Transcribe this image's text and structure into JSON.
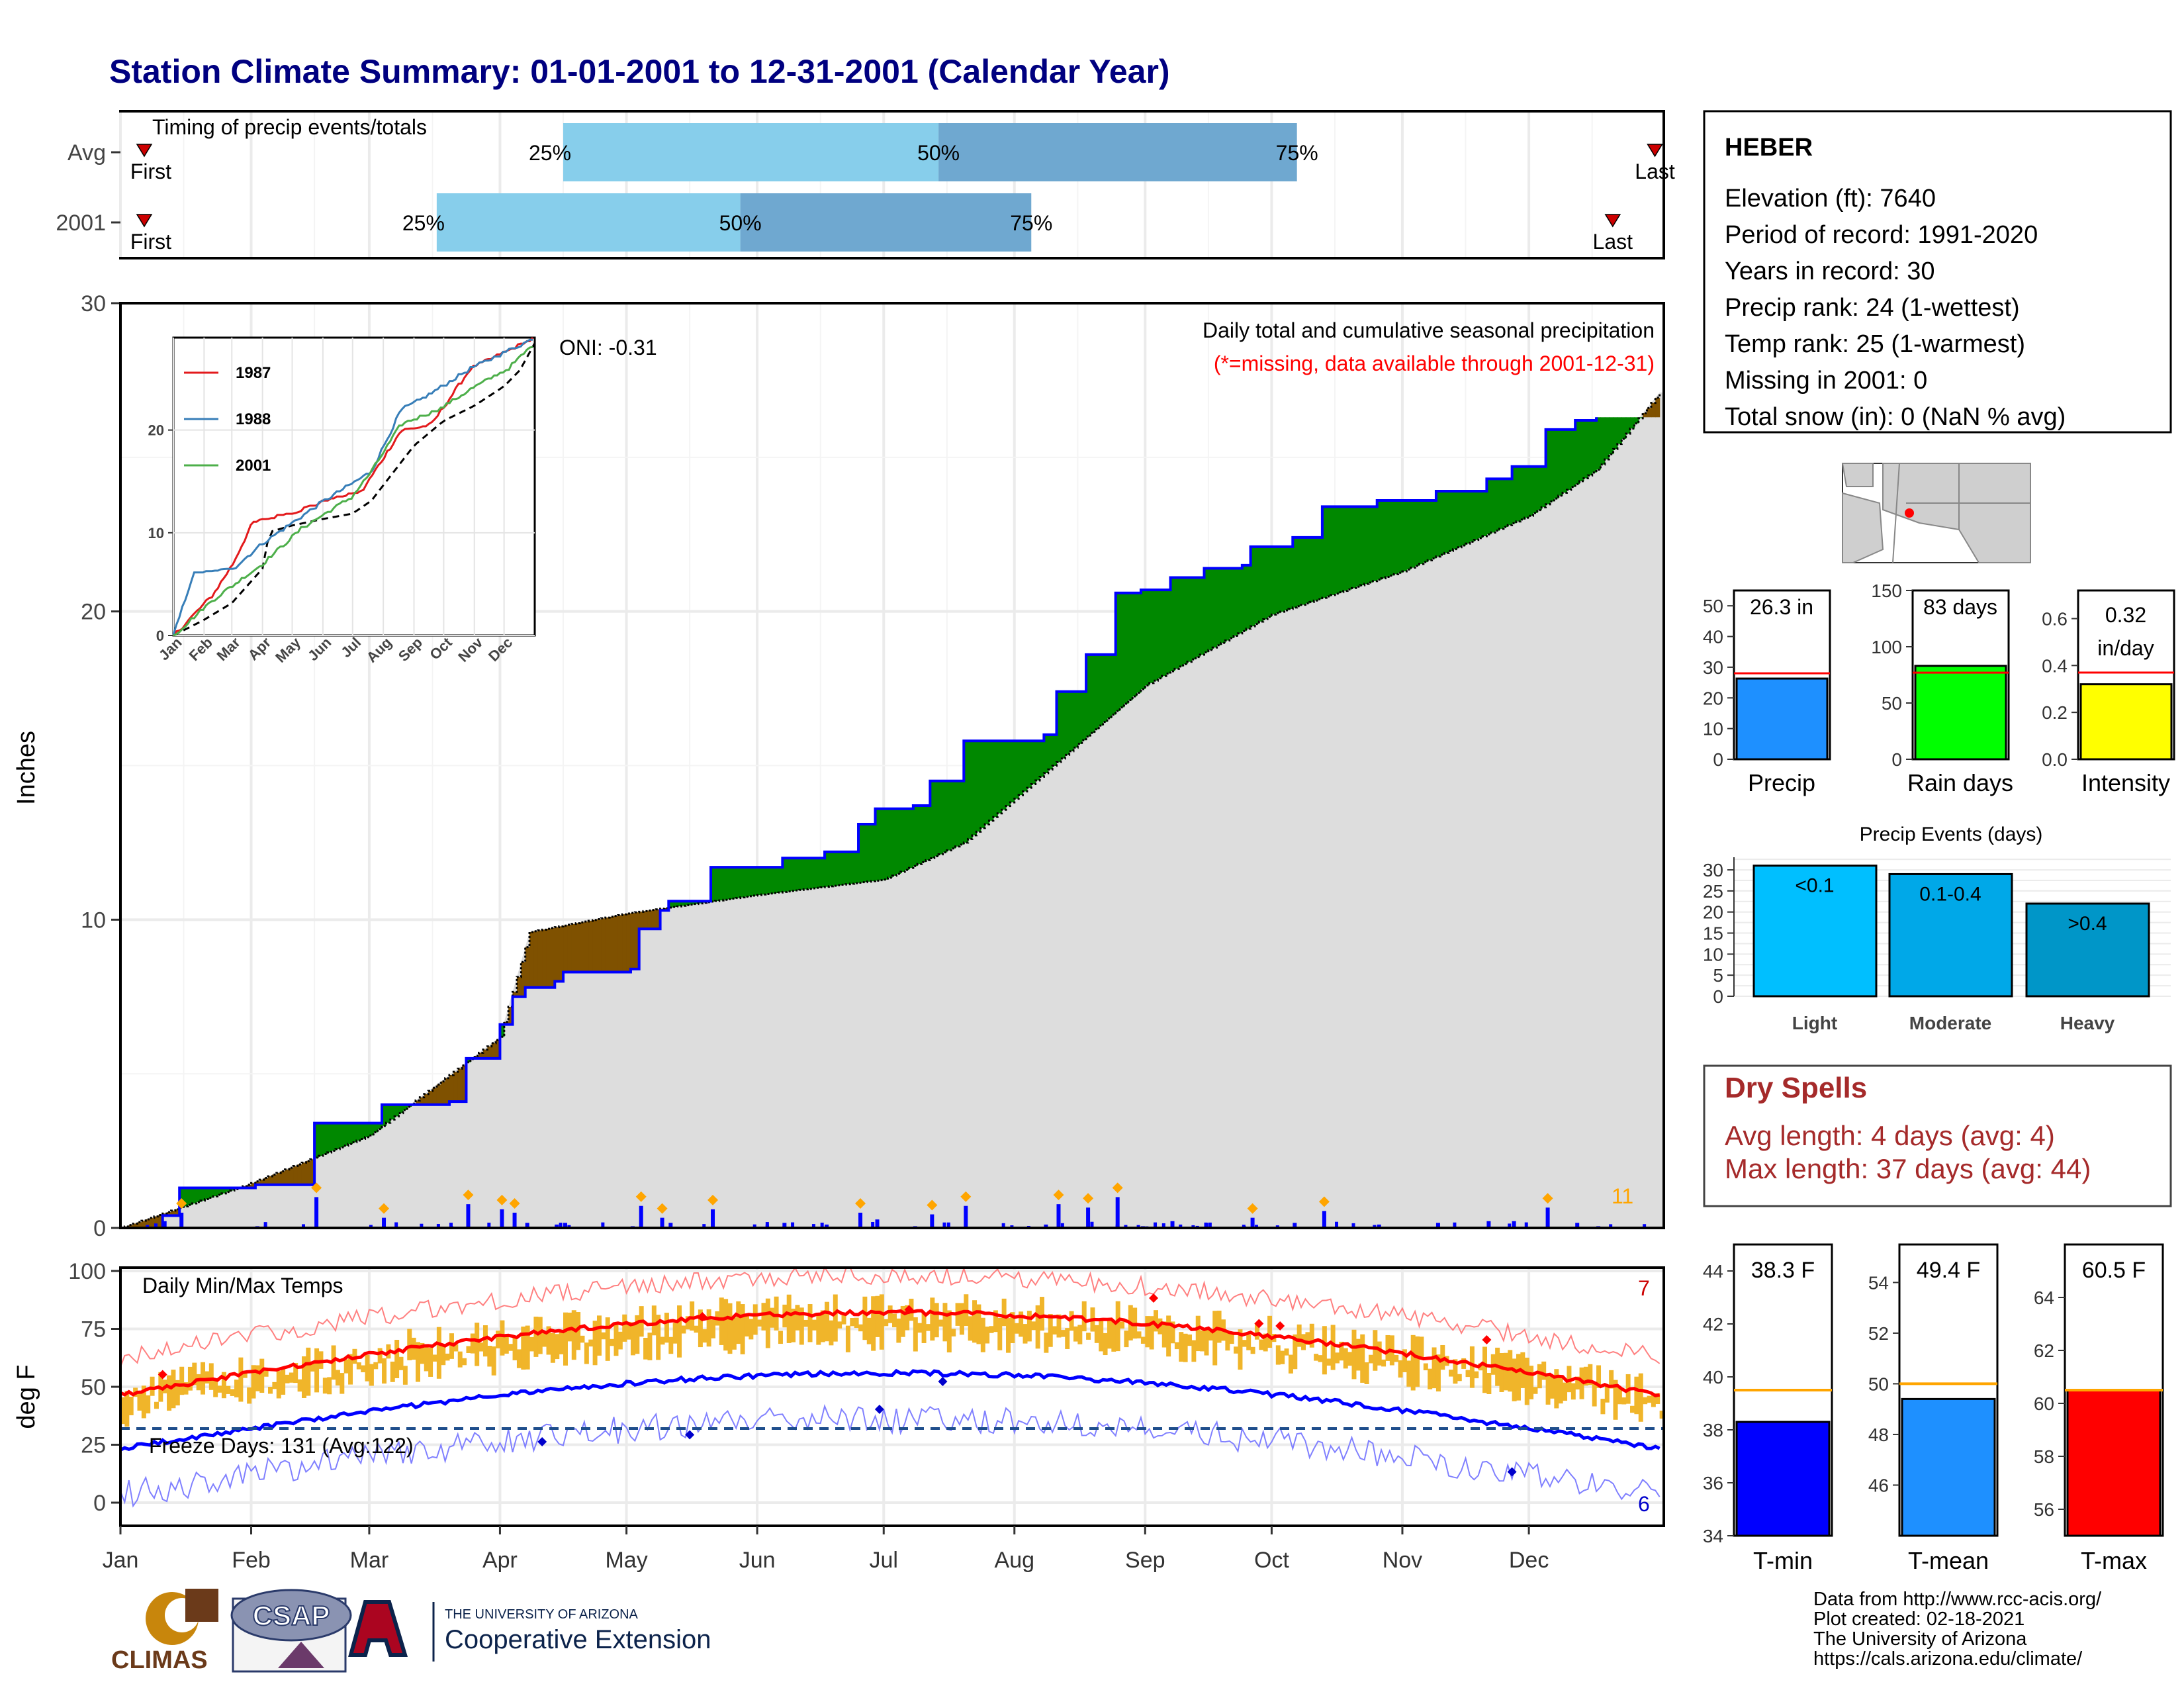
{
  "title": "Station Climate Summary: 01-01-2001 to 12-31-2001 (Calendar Year)",
  "months": [
    "Jan",
    "Feb",
    "Mar",
    "Apr",
    "May",
    "Jun",
    "Jul",
    "Aug",
    "Sep",
    "Oct",
    "Nov",
    "Dec"
  ],
  "timing": {
    "label": "Timing of precip events/totals",
    "rows": [
      {
        "name": "Avg",
        "first_doy": 8,
        "q25_doy": 105,
        "q50_doy": 194,
        "q75_doy": 279,
        "last_doy": 362
      },
      {
        "name": "2001",
        "first_doy": 8,
        "q25_doy": 75,
        "q50_doy": 147,
        "q75_doy": 216,
        "last_doy": 352
      }
    ],
    "first_label": "First",
    "last_label": "Last",
    "q25_label": "25%",
    "q50_label": "50%",
    "q75_label": "75%"
  },
  "precip": {
    "ylabel": "Inches",
    "yticks": [
      "0",
      "10",
      "20",
      "30"
    ],
    "ylim": [
      0,
      30
    ],
    "title": "Daily total and cumulative seasonal precipitation",
    "subtitle": "(*=missing, data available through 2001-12-31)",
    "oni": "ONI: -0.31",
    "max_day_count": "11",
    "colors": {
      "normal": "#dddddd",
      "above": "#008800",
      "below": "#7f5100",
      "line": "#0000ff",
      "daily": "#0000ff",
      "marker": "#ffa500"
    }
  },
  "inset": {
    "series": [
      {
        "name": "1987",
        "color": "#e31a1c"
      },
      {
        "name": "1988",
        "color": "#377eb8"
      },
      {
        "name": "2001",
        "color": "#4daf4a"
      }
    ],
    "yticks": [
      "0",
      "10",
      "20"
    ],
    "months": [
      "Jan",
      "Feb",
      "Mar",
      "Apr",
      "May",
      "Jun",
      "Jul",
      "Aug",
      "Sep",
      "Oct",
      "Nov",
      "Dec"
    ]
  },
  "station": {
    "name": "HEBER",
    "lines": [
      "Elevation (ft): 7640",
      "Period of record: 1991-2020",
      "Years in record: 30",
      "Precip rank: 24 (1-wettest)",
      "Temp rank: 25 (1-warmest)",
      "Missing in 2001: 0",
      "Total snow (in): 0 (NaN % avg)"
    ]
  },
  "mini_bars": [
    {
      "label": "Precip",
      "value_text": "26.3 in",
      "value": 26.3,
      "avg": 28,
      "yticks": [
        "0",
        "10",
        "20",
        "30",
        "40",
        "50"
      ],
      "ymax": 55,
      "color": "#1e90ff"
    },
    {
      "label": "Rain days",
      "value_text": "83 days",
      "value": 83,
      "avg": 77,
      "yticks": [
        "0",
        "50",
        "100",
        "150"
      ],
      "ymax": 150,
      "color": "#00ff00"
    },
    {
      "label": "Intensity",
      "value_text1": "0.32",
      "value_text2": "in/day",
      "value": 0.32,
      "avg": 0.37,
      "yticks": [
        "0.0",
        "0.2",
        "0.4",
        "0.6"
      ],
      "ymax": 0.72,
      "color": "#ffff00"
    }
  ],
  "events": {
    "title": "Precip Events (days)",
    "categories": [
      "Light",
      "Moderate",
      "Heavy"
    ],
    "labels": [
      "<0.1",
      "0.1-0.4",
      ">0.4"
    ],
    "values": [
      31,
      29,
      22
    ],
    "yticks": [
      "0",
      "5",
      "10",
      "15",
      "20",
      "25",
      "30"
    ],
    "colors": [
      "#00bfff",
      "#00a8e8",
      "#0096c8"
    ]
  },
  "dry": {
    "title": "Dry Spells",
    "avg": "Avg length: 4 days (avg: 4)",
    "max": "Max length: 37 days (avg: 44)"
  },
  "temps": {
    "title": "Daily Min/Max Temps",
    "ylabel": "deg F",
    "yticks": [
      "0",
      "25",
      "50",
      "75",
      "100"
    ],
    "freeze": "Freeze Days: 131 (Avg:122)",
    "hot_count": "7",
    "cold_count": "6",
    "freeze_line": 32
  },
  "temp_bars": [
    {
      "label": "T-min",
      "value_text": "38.3 F",
      "value": 38.3,
      "avg": 39.5,
      "ymin": 34,
      "ymax": 45,
      "yticks": [
        "34",
        "36",
        "38",
        "40",
        "42",
        "44"
      ],
      "color": "#0000ff"
    },
    {
      "label": "T-mean",
      "value_text": "49.4 F",
      "value": 49.4,
      "avg": 50.0,
      "ymin": 44,
      "ymax": 55.5,
      "yticks": [
        "46",
        "48",
        "50",
        "52",
        "54"
      ],
      "color": "#1e90ff"
    },
    {
      "label": "T-max",
      "value_text": "60.5 F",
      "value": 60.5,
      "avg": 60.5,
      "ymin": 55,
      "ymax": 66,
      "yticks": [
        "56",
        "58",
        "60",
        "62",
        "64"
      ],
      "color": "#ff0000"
    }
  ],
  "credits": [
    "Data from http://www.rcc-acis.org/",
    "Plot created: 02-18-2021",
    "The University of Arizona",
    "https://cals.arizona.edu/climate/"
  ],
  "logos": {
    "climas": "CLIMAS",
    "csap": "CSAP",
    "ua_small": "THE UNIVERSITY OF ARIZONA",
    "ua_big": "Cooperative Extension"
  }
}
